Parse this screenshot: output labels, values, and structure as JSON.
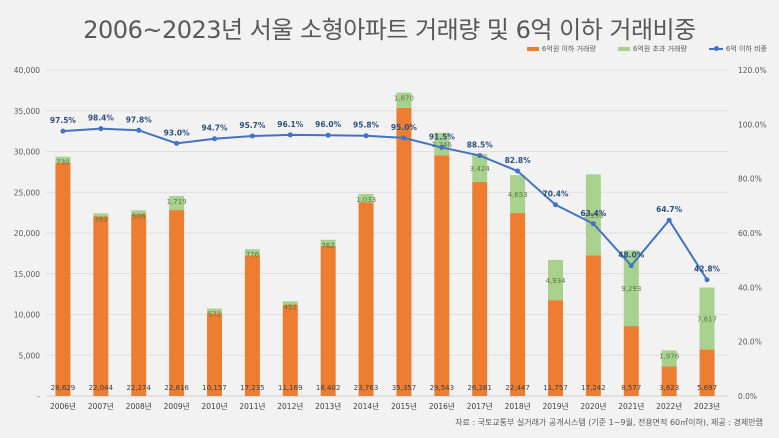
{
  "title": "2006~2023년 서울 소형아파트 거래량 및 6억 이하 거래비중",
  "legend": [
    {
      "label": "6억원 이하 거래량",
      "color": "#ed7d31",
      "kind": "bar"
    },
    {
      "label": "6억원 초과 거래량",
      "color": "#a9d18e",
      "kind": "bar"
    },
    {
      "label": "6억 이하 비중",
      "color": "#4472c4",
      "kind": "line"
    }
  ],
  "source": "자료 : 국토교통부 실거래가 공개시스템 (기준 1~9월, 전용면적 60㎡이하), 제공 : 경제만랩",
  "chart_data": {
    "type": "bar",
    "stacked": true,
    "title": "2006~2023년 서울 소형아파트 거래량 및 6억 이하 거래비중",
    "categories": [
      "2006년",
      "2007년",
      "2008년",
      "2009년",
      "2010년",
      "2011년",
      "2012년",
      "2013년",
      "2014년",
      "2015년",
      "2016년",
      "2017년",
      "2018년",
      "2019년",
      "2020년",
      "2021년",
      "2022년",
      "2023년"
    ],
    "series": [
      {
        "name": "6억원 이하 거래량",
        "type": "bar",
        "axis": "left",
        "color": "#ed7d31",
        "values": [
          28629,
          22044,
          22274,
          22816,
          10157,
          17235,
          11169,
          18402,
          23763,
          35357,
          29543,
          26281,
          22447,
          11757,
          17242,
          8577,
          3623,
          5697
        ],
        "labels": [
          "28,629",
          "22,044",
          "22,274",
          "22,816",
          "10,157",
          "17,235",
          "11,169",
          "18,402",
          "23,763",
          "35,357",
          "29,543",
          "26,281",
          "22,447",
          "11,757",
          "17,242",
          "8,577",
          "3,623",
          "5,697"
        ]
      },
      {
        "name": "6억원 초과 거래량",
        "type": "bar",
        "axis": "left",
        "color": "#a9d18e",
        "values": [
          730,
          363,
          506,
          1719,
          572,
          776,
          452,
          762,
          1033,
          1870,
          2746,
          3424,
          4653,
          4934,
          9950,
          9293,
          1976,
          7617
        ],
        "labels": [
          "730",
          "363",
          "506",
          "1,719",
          "572",
          "776",
          "452",
          "762",
          "1,033",
          "1,870",
          "2,746",
          "3,424",
          "4,653",
          "4,934",
          "9,950",
          "9,293",
          "1,976",
          "7,617"
        ]
      },
      {
        "name": "6억 이하 비중",
        "type": "line",
        "axis": "right",
        "color": "#4472c4",
        "values": [
          97.5,
          98.4,
          97.8,
          93.0,
          94.7,
          95.7,
          96.1,
          96.0,
          95.8,
          95.0,
          91.5,
          88.5,
          82.8,
          70.4,
          63.4,
          48.0,
          64.7,
          42.8
        ],
        "labels": [
          "97.5%",
          "98.4%",
          "97.8%",
          "93.0%",
          "94.7%",
          "95.7%",
          "96.1%",
          "96.0%",
          "95.8%",
          "95.0%",
          "91.5%",
          "88.5%",
          "82.8%",
          "70.4%",
          "63.4%",
          "48.0%",
          "64.7%",
          "42.8%"
        ]
      }
    ],
    "left_axis": {
      "range": [
        0,
        40000
      ],
      "ticks": [
        "-",
        "5,000",
        "10,000",
        "15,000",
        "20,000",
        "25,000",
        "30,000",
        "35,000",
        "40,000"
      ]
    },
    "right_axis": {
      "range": [
        0,
        120
      ],
      "ticks": [
        "0.0%",
        "20.0%",
        "40.0%",
        "60.0%",
        "80.0%",
        "100.0%",
        "120.0%"
      ]
    },
    "grid": true,
    "legend_position": "top-right"
  }
}
